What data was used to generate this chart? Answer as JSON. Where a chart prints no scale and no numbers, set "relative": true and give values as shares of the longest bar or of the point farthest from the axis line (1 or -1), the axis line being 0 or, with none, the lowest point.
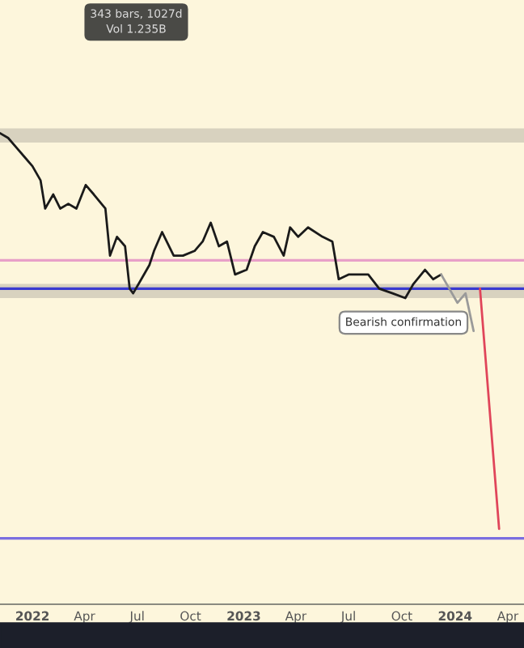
{
  "chart_data": {
    "type": "line",
    "relative": true,
    "grid": false,
    "legend": false,
    "tick_labels": "x",
    "marker": "none",
    "line_style": "solid",
    "xlim": [
      "2021-11-06",
      "2024-04-29"
    ],
    "xticks": [
      {
        "value": "2022-01-01",
        "label": "2022"
      },
      {
        "value": "2022-04-01",
        "label": "Apr"
      },
      {
        "value": "2022-07-01",
        "label": "Jul"
      },
      {
        "value": "2022-10-01",
        "label": "Oct"
      },
      {
        "value": "2023-01-01",
        "label": "2023"
      },
      {
        "value": "2023-04-01",
        "label": "Apr"
      },
      {
        "value": "2023-07-01",
        "label": "Jul"
      },
      {
        "value": "2023-10-01",
        "label": "Oct"
      },
      {
        "value": "2024-01-01",
        "label": "2024"
      },
      {
        "value": "2024-04-01",
        "label": "Apr"
      }
    ],
    "series": [
      {
        "color": "#1a1a1a",
        "x": [
          "2021-11-06",
          "2021-11-20",
          "2021-12-04",
          "2021-12-18",
          "2022-01-01",
          "2022-01-15",
          "2022-01-23",
          "2022-02-06",
          "2022-02-18",
          "2022-03-04",
          "2022-03-18",
          "2022-04-03",
          "2022-04-17",
          "2022-05-07",
          "2022-05-15",
          "2022-05-27",
          "2022-06-10",
          "2022-06-18",
          "2022-06-24",
          "2022-07-08",
          "2022-07-22",
          "2022-07-30",
          "2022-08-13",
          "2022-09-02",
          "2022-09-18",
          "2022-10-08",
          "2022-10-22",
          "2022-11-05",
          "2022-11-19",
          "2022-12-03",
          "2022-12-17",
          "2023-01-06",
          "2023-01-20",
          "2023-02-03",
          "2023-02-22",
          "2023-03-11",
          "2023-03-22",
          "2023-04-05",
          "2023-04-22",
          "2023-05-17",
          "2023-06-03",
          "2023-06-14",
          "2023-07-01",
          "2023-08-04",
          "2023-08-23",
          "2023-09-15",
          "2023-10-07",
          "2023-10-21",
          "2023-11-10",
          "2023-11-24",
          "2023-12-08"
        ],
        "values": [
          1.0,
          0.99,
          0.97,
          0.95,
          0.93,
          0.9,
          0.84,
          0.87,
          0.84,
          0.85,
          0.84,
          0.89,
          0.87,
          0.84,
          0.74,
          0.78,
          0.76,
          0.67,
          0.66,
          0.69,
          0.72,
          0.75,
          0.79,
          0.74,
          0.74,
          0.75,
          0.77,
          0.81,
          0.76,
          0.77,
          0.7,
          0.71,
          0.76,
          0.79,
          0.78,
          0.74,
          0.8,
          0.78,
          0.8,
          0.78,
          0.77,
          0.69,
          0.7,
          0.7,
          0.67,
          0.66,
          0.65,
          0.68,
          0.71,
          0.69,
          0.7
        ]
      },
      {
        "color": "#9a9a9a",
        "x": [
          "2023-12-08",
          "2023-12-22",
          "2024-01-05",
          "2024-01-19",
          "2024-02-02"
        ],
        "values": [
          0.7,
          0.67,
          0.64,
          0.66,
          0.58
        ]
      },
      {
        "color": "#e0455a",
        "x": [
          "2024-02-13",
          "2024-03-17"
        ],
        "values": [
          0.67,
          0.16
        ]
      }
    ],
    "ref_lines": [
      {
        "axis": "y",
        "value": 0.73,
        "color": "#e8a0c8"
      },
      {
        "axis": "y",
        "value": 0.67,
        "color": "#3a3ad0"
      },
      {
        "axis": "y",
        "value": 0.14,
        "color": "#7a6ee0"
      }
    ],
    "bands": [
      {
        "axis": "y",
        "from": 0.98,
        "to": 1.01,
        "color": "#d8d2bf"
      },
      {
        "axis": "y",
        "from": 0.65,
        "to": 0.68,
        "color": "#d8d2bf"
      }
    ],
    "annotations": [
      "343 bars, 1027d\nVol 1.235B",
      "Bearish confirmation"
    ]
  }
}
